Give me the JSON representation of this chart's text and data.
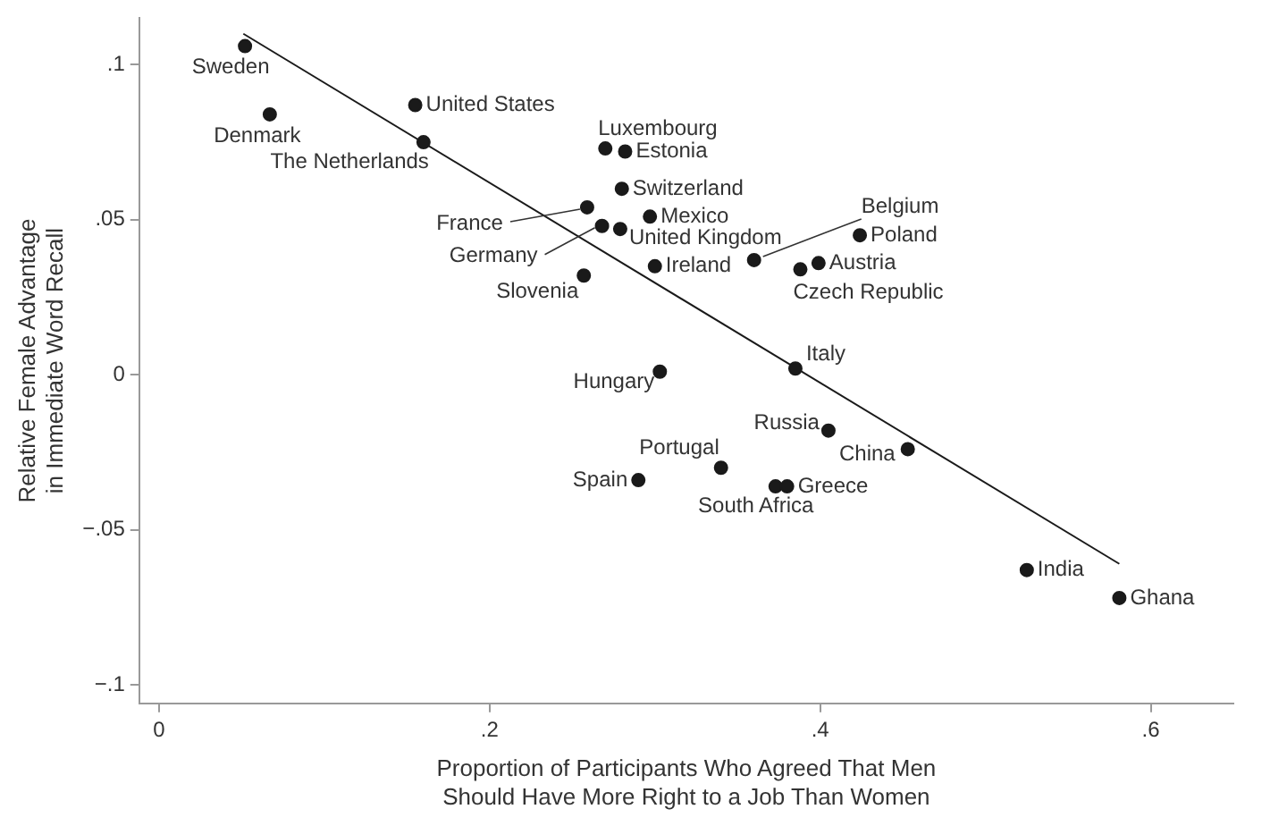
{
  "chart_data": {
    "type": "scatter",
    "xlabel": "Proportion of Participants Who Agreed That Men\nShould Have More Right to a Job Than Women",
    "ylabel": "Relative Female Advantage\nin Immediate Word Recall",
    "xlim": [
      -0.012,
      0.65
    ],
    "xticks": [
      0,
      {
        "value": 0.2,
        "label": ".2"
      },
      {
        "value": 0.4,
        "label": ".4"
      },
      {
        "value": 0.6,
        "label": ".6"
      }
    ],
    "ylim": [
      -0.106,
      0.115
    ],
    "yticks": [
      {
        "value": -0.1,
        "label": "−.1"
      },
      {
        "value": -0.05,
        "label": "−.05"
      },
      0,
      {
        "value": 0.05,
        "label": ".05"
      },
      {
        "value": 0.1,
        "label": ".1"
      }
    ],
    "series": [
      {
        "marker": "circle",
        "color": "#1a1a1a",
        "x": [
          0.052,
          0.067,
          0.155,
          0.16,
          0.27,
          0.282,
          0.28,
          0.259,
          0.297,
          0.268,
          0.279,
          0.3,
          0.257,
          0.36,
          0.424,
          0.399,
          0.388,
          0.385,
          0.303,
          0.405,
          0.453,
          0.34,
          0.29,
          0.373,
          0.38,
          0.525,
          0.581
        ],
        "values": [
          0.106,
          0.084,
          0.087,
          0.075,
          0.073,
          0.072,
          0.06,
          0.054,
          0.051,
          0.048,
          0.047,
          0.035,
          0.032,
          0.037,
          0.045,
          0.036,
          0.034,
          0.002,
          0.001,
          -0.018,
          -0.024,
          -0.03,
          -0.034,
          -0.036,
          -0.036,
          -0.063,
          -0.072
        ]
      },
      {
        "type": "line",
        "color": "#1a1a1a",
        "x": [
          0.051,
          0.581
        ],
        "values": [
          0.11,
          -0.061
        ]
      }
    ],
    "annotations": [
      {
        "text": "Sweden",
        "x": 0.052,
        "y": 0.106
      },
      {
        "text": "Denmark",
        "x": 0.067,
        "y": 0.084
      },
      {
        "text": "United States",
        "x": 0.155,
        "y": 0.087
      },
      {
        "text": "The Netherlands",
        "x": 0.16,
        "y": 0.075
      },
      {
        "text": "Luxembourg",
        "x": 0.27,
        "y": 0.073
      },
      {
        "text": "Estonia",
        "x": 0.282,
        "y": 0.072
      },
      {
        "text": "Switzerland",
        "x": 0.28,
        "y": 0.06
      },
      {
        "text": "France",
        "x": 0.259,
        "y": 0.054
      },
      {
        "text": "Mexico",
        "x": 0.297,
        "y": 0.051
      },
      {
        "text": "Germany",
        "x": 0.268,
        "y": 0.048
      },
      {
        "text": "United Kingdom",
        "x": 0.279,
        "y": 0.047
      },
      {
        "text": "Ireland",
        "x": 0.3,
        "y": 0.035
      },
      {
        "text": "Slovenia",
        "x": 0.257,
        "y": 0.032
      },
      {
        "text": "Belgium",
        "x": 0.36,
        "y": 0.037
      },
      {
        "text": "Poland",
        "x": 0.424,
        "y": 0.045
      },
      {
        "text": "Austria",
        "x": 0.399,
        "y": 0.036
      },
      {
        "text": "Czech Republic",
        "x": 0.388,
        "y": 0.034
      },
      {
        "text": "Italy",
        "x": 0.385,
        "y": 0.002
      },
      {
        "text": "Hungary",
        "x": 0.303,
        "y": 0.001
      },
      {
        "text": "Russia",
        "x": 0.405,
        "y": -0.018
      },
      {
        "text": "China",
        "x": 0.453,
        "y": -0.024
      },
      {
        "text": "Portugal",
        "x": 0.34,
        "y": -0.03
      },
      {
        "text": "Spain",
        "x": 0.29,
        "y": -0.034
      },
      {
        "text": "South Africa",
        "x": 0.373,
        "y": -0.036
      },
      {
        "text": "Greece",
        "x": 0.38,
        "y": -0.036
      },
      {
        "text": "India",
        "x": 0.525,
        "y": -0.063
      },
      {
        "text": "Ghana",
        "x": 0.581,
        "y": -0.072
      }
    ]
  }
}
